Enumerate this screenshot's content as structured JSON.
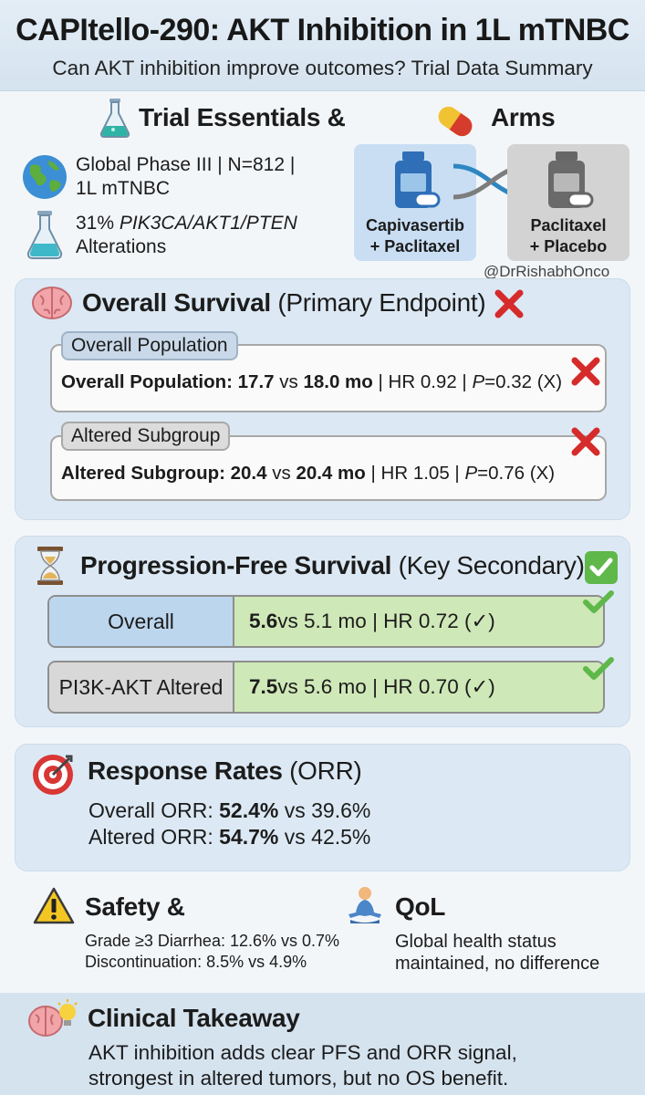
{
  "header": {
    "title": "CAPItello-290: AKT Inhibition in 1L mTNBC",
    "subtitle": "Can AKT inhibition improve outcomes? Trial Data Summary"
  },
  "trial": {
    "heading": "Trial Essentials &",
    "design_line1": "Global Phase III | N=812 |",
    "design_line2": "1L mTNBC",
    "alterations_pct": "31% ",
    "alterations_genes": "PIK3CA/AKT1/PTEN",
    "alterations_line2": "Alterations"
  },
  "arms": {
    "heading": "Arms",
    "arm1_line1": "Capivasertib",
    "arm1_line2": "+ Paclitaxel",
    "arm2_line1": "Paclitaxel",
    "arm2_line2": "+ Placebo",
    "handle": "@DrRishabhOnco"
  },
  "os": {
    "heading": "Overall Survival",
    "heading_suffix": " (Primary Endpoint)",
    "overall": {
      "tag": "Overall Population",
      "label": "Overall Population: 17.7",
      "vs": " vs ",
      "value2": "18.0 mo",
      "rest_a": " | HR 0.92 | ",
      "p_label": "P",
      "rest_b": "=0.32 (X)"
    },
    "altered": {
      "tag": "Altered Subgroup",
      "label": "Altered Subgroup: 20.4",
      "vs": " vs ",
      "value2": "20.4 mo",
      "rest_a": " | HR 1.05 | ",
      "p_label": "P",
      "rest_b": "=0.76 (X)"
    }
  },
  "pfs": {
    "heading": "Progression-Free Survival",
    "heading_suffix": " (Key Secondary)",
    "rows": [
      {
        "label": "Overall",
        "value1": "5.6",
        "rest": " vs 5.1 mo | HR 0.72 (✓)"
      },
      {
        "label": "PI3K-AKT Altered",
        "value1": "7.5",
        "rest": " vs 5.6 mo | HR 0.70 (✓)"
      }
    ]
  },
  "response": {
    "heading": "Response Rates",
    "heading_suffix": " (ORR)",
    "overall_label": "Overall ORR: ",
    "overall_value": "52.4%",
    "overall_rest": " vs 39.6%",
    "altered_label": "Altered ORR: ",
    "altered_value": "54.7%",
    "altered_rest": " vs 42.5%"
  },
  "safety": {
    "heading": "Safety &",
    "line1": "Grade ≥3 Diarrhea: 12.6% vs 0.7%",
    "line2": "Discontinuation: 8.5% vs 4.9%"
  },
  "qol": {
    "heading": "QoL",
    "line1": "Global health status",
    "line2": "maintained, no difference"
  },
  "takeaway": {
    "heading": "Clinical Takeaway",
    "line1": "AKT inhibition adds clear PFS and ORR signal,",
    "line2": "strongest in altered tumors, but no OS benefit."
  },
  "icons": {
    "flask": "flask-icon",
    "pill": "pill-icon",
    "globe": "globe-icon",
    "brain": "brain-icon",
    "cross": "red-x-icon",
    "hourglass": "hourglass-icon",
    "check": "green-check-icon",
    "target": "target-icon",
    "warning": "warning-icon",
    "meditation": "meditation-icon",
    "bulb_brain": "brain-lightbulb-icon"
  },
  "colors": {
    "header_bg": "#d5e3ef",
    "panel_bg": "#dce9f4",
    "arm_blue": "#c9def3",
    "arm_grey": "#d3d3d3",
    "pfs_green": "#cfe8b8",
    "cross_red": "#d62b2b",
    "check_green": "#5fb84a",
    "bottle_blue": "#2f6fb8"
  }
}
